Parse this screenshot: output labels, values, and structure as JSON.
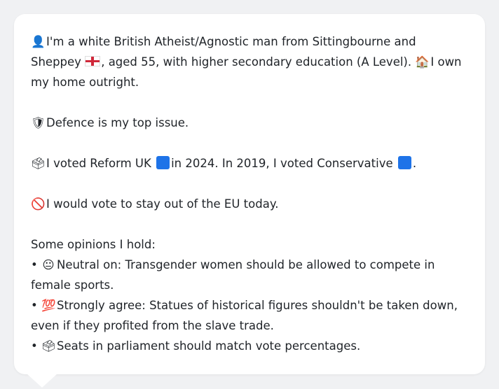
{
  "profile": {
    "intro_icon": "bust-in-silhouette-icon",
    "intro_text_1": "I'm a white British Atheist/Agnostic man from Sittingbourne and Sheppey",
    "flag_icon": "england-flag-icon",
    "intro_text_2": ", aged 55, with higher secondary education (A Level).",
    "home_icon": "house-icon",
    "intro_text_3": "I own my home outright.",
    "issue_icon": "shield-icon",
    "issue_text": "Defence is my top issue.",
    "vote_icon": "ballot-box-icon",
    "vote_text_1": "I voted Reform UK",
    "vote_text_2": "in 2024. In 2019, I voted Conservative",
    "vote_text_3": ".",
    "party_square_color": "#1e73e8",
    "eu_icon": "prohibited-icon",
    "eu_text": "I would vote to stay out of the EU today.",
    "opinions_heading": "Some opinions I hold:",
    "opinions": [
      {
        "bullet": "•",
        "icon": "neutral-face-icon",
        "text": "Neutral on: Transgender women should be allowed to compete in female sports."
      },
      {
        "bullet": "•",
        "icon": "hundred-points-icon",
        "text": "Strongly agree: Statues of historical figures shouldn't be taken down, even if they profited from the slave trade."
      },
      {
        "bullet": "•",
        "icon": "ballot-box-icon",
        "text": "Seats in parliament should match vote percentages."
      }
    ]
  }
}
